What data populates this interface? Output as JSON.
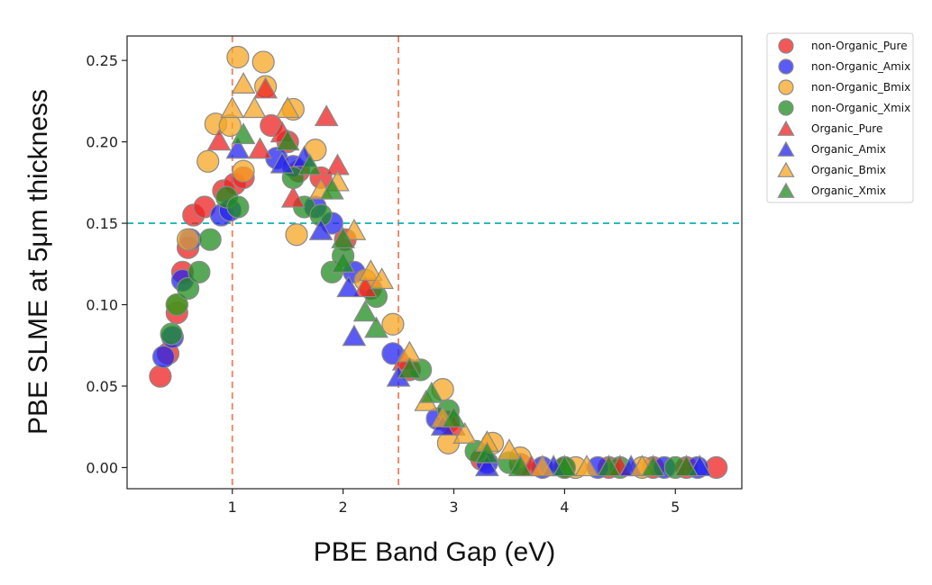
{
  "chart_data": {
    "type": "scatter",
    "title": "",
    "xlabel": "PBE Band Gap (eV)",
    "ylabel": "PBE SLME at 5μm thickness",
    "xlim": [
      0.05,
      5.6
    ],
    "ylim": [
      -0.013,
      0.265
    ],
    "xticks": [
      1,
      2,
      3,
      4,
      5
    ],
    "yticks": [
      0.0,
      0.05,
      0.1,
      0.15,
      0.2,
      0.25
    ],
    "ytick_labels": [
      "0.00",
      "0.05",
      "0.10",
      "0.15",
      "0.20",
      "0.25"
    ],
    "grid": false,
    "legend_position": "outside-top-right",
    "reference_lines": [
      {
        "orientation": "vertical",
        "value": 1.0,
        "color": "#f07f5a",
        "style": "dashed"
      },
      {
        "orientation": "vertical",
        "value": 2.5,
        "color": "#f07f5a",
        "style": "dashed"
      },
      {
        "orientation": "horizontal",
        "value": 0.15,
        "color": "#22b5b5",
        "style": "dashed"
      }
    ],
    "series": [
      {
        "name": "non-Organic_Pure",
        "marker": "circle",
        "color": "#ef2020",
        "points": [
          [
            0.35,
            0.056
          ],
          [
            0.42,
            0.07
          ],
          [
            0.5,
            0.095
          ],
          [
            0.55,
            0.12
          ],
          [
            0.6,
            0.135
          ],
          [
            0.65,
            0.155
          ],
          [
            0.75,
            0.16
          ],
          [
            0.92,
            0.17
          ],
          [
            1.02,
            0.174
          ],
          [
            1.1,
            0.178
          ],
          [
            1.35,
            0.21
          ],
          [
            1.5,
            0.2
          ],
          [
            1.6,
            0.182
          ],
          [
            1.8,
            0.178
          ],
          [
            2.02,
            0.14
          ],
          [
            2.25,
            0.11
          ],
          [
            2.6,
            0.06
          ],
          [
            2.95,
            0.028
          ],
          [
            3.25,
            0.005
          ],
          [
            3.6,
            0.002
          ],
          [
            4.0,
            0.0
          ],
          [
            4.4,
            0.0
          ],
          [
            4.8,
            0.0
          ],
          [
            5.1,
            0.0
          ],
          [
            5.37,
            0.0
          ]
        ]
      },
      {
        "name": "non-Organic_Amix",
        "marker": "circle",
        "color": "#2323f0",
        "points": [
          [
            0.38,
            0.068
          ],
          [
            0.46,
            0.08
          ],
          [
            0.55,
            0.115
          ],
          [
            0.62,
            0.14
          ],
          [
            0.9,
            0.155
          ],
          [
            0.98,
            0.158
          ],
          [
            1.4,
            0.19
          ],
          [
            1.55,
            0.185
          ],
          [
            1.75,
            0.16
          ],
          [
            1.9,
            0.15
          ],
          [
            2.1,
            0.12
          ],
          [
            2.45,
            0.07
          ],
          [
            2.85,
            0.03
          ],
          [
            3.3,
            0.003
          ],
          [
            3.8,
            0.0
          ],
          [
            4.3,
            0.0
          ],
          [
            4.9,
            0.0
          ],
          [
            5.2,
            0.0
          ]
        ]
      },
      {
        "name": "non-Organic_Bmix",
        "marker": "circle",
        "color": "#f5a623",
        "points": [
          [
            0.5,
            0.1
          ],
          [
            0.6,
            0.14
          ],
          [
            0.78,
            0.188
          ],
          [
            0.85,
            0.211
          ],
          [
            0.98,
            0.21
          ],
          [
            1.05,
            0.252
          ],
          [
            1.1,
            0.182
          ],
          [
            1.28,
            0.249
          ],
          [
            1.3,
            0.234
          ],
          [
            1.55,
            0.22
          ],
          [
            1.58,
            0.143
          ],
          [
            1.75,
            0.195
          ],
          [
            2.2,
            0.115
          ],
          [
            2.45,
            0.088
          ],
          [
            2.9,
            0.048
          ],
          [
            2.95,
            0.015
          ],
          [
            3.35,
            0.015
          ],
          [
            3.6,
            0.006
          ],
          [
            4.1,
            0.0
          ],
          [
            4.7,
            0.0
          ]
        ]
      },
      {
        "name": "non-Organic_Xmix",
        "marker": "circle",
        "color": "#1f8c1f",
        "points": [
          [
            0.45,
            0.082
          ],
          [
            0.5,
            0.1
          ],
          [
            0.6,
            0.11
          ],
          [
            0.7,
            0.12
          ],
          [
            0.8,
            0.14
          ],
          [
            0.95,
            0.166
          ],
          [
            1.05,
            0.16
          ],
          [
            1.55,
            0.178
          ],
          [
            1.65,
            0.16
          ],
          [
            1.8,
            0.155
          ],
          [
            1.9,
            0.12
          ],
          [
            2.0,
            0.13
          ],
          [
            2.3,
            0.105
          ],
          [
            2.7,
            0.06
          ],
          [
            2.95,
            0.035
          ],
          [
            3.2,
            0.01
          ],
          [
            3.5,
            0.003
          ],
          [
            4.0,
            0.0
          ],
          [
            4.5,
            0.0
          ],
          [
            5.0,
            0.0
          ]
        ]
      },
      {
        "name": "Organic_Pure",
        "marker": "triangle",
        "color": "#ef2020",
        "points": [
          [
            0.88,
            0.2
          ],
          [
            1.25,
            0.195
          ],
          [
            1.3,
            0.232
          ],
          [
            1.45,
            0.205
          ],
          [
            1.55,
            0.165
          ],
          [
            1.85,
            0.215
          ],
          [
            1.95,
            0.185
          ],
          [
            2.2,
            0.11
          ],
          [
            2.55,
            0.065
          ],
          [
            3.0,
            0.025
          ],
          [
            3.7,
            0.0
          ],
          [
            4.5,
            0.0
          ],
          [
            5.1,
            0.0
          ]
        ]
      },
      {
        "name": "Organic_Amix",
        "marker": "triangle",
        "color": "#2323f0",
        "points": [
          [
            1.05,
            0.195
          ],
          [
            1.45,
            0.186
          ],
          [
            1.65,
            0.19
          ],
          [
            1.8,
            0.145
          ],
          [
            2.05,
            0.11
          ],
          [
            2.1,
            0.08
          ],
          [
            2.5,
            0.055
          ],
          [
            2.9,
            0.025
          ],
          [
            3.3,
            0.0
          ],
          [
            3.9,
            0.0
          ],
          [
            4.6,
            0.0
          ],
          [
            5.22,
            0.0
          ]
        ]
      },
      {
        "name": "Organic_Bmix",
        "marker": "triangle",
        "color": "#f5a623",
        "points": [
          [
            1.0,
            0.22
          ],
          [
            1.1,
            0.235
          ],
          [
            1.2,
            0.22
          ],
          [
            1.5,
            0.22
          ],
          [
            1.8,
            0.17
          ],
          [
            1.95,
            0.175
          ],
          [
            2.1,
            0.145
          ],
          [
            2.25,
            0.12
          ],
          [
            2.35,
            0.115
          ],
          [
            2.6,
            0.07
          ],
          [
            2.75,
            0.04
          ],
          [
            2.9,
            0.03
          ],
          [
            3.1,
            0.02
          ],
          [
            3.3,
            0.015
          ],
          [
            3.5,
            0.01
          ],
          [
            3.8,
            0.0
          ],
          [
            4.2,
            0.0
          ],
          [
            4.7,
            0.0
          ]
        ]
      },
      {
        "name": "Organic_Xmix",
        "marker": "triangle",
        "color": "#1f8c1f",
        "points": [
          [
            1.1,
            0.204
          ],
          [
            1.5,
            0.2
          ],
          [
            1.7,
            0.185
          ],
          [
            1.9,
            0.17
          ],
          [
            2.0,
            0.14
          ],
          [
            2.0,
            0.125
          ],
          [
            2.2,
            0.095
          ],
          [
            2.3,
            0.085
          ],
          [
            2.6,
            0.06
          ],
          [
            2.8,
            0.045
          ],
          [
            3.0,
            0.03
          ],
          [
            3.3,
            0.008
          ],
          [
            3.6,
            0.0
          ],
          [
            4.0,
            0.0
          ],
          [
            4.4,
            0.0
          ],
          [
            4.8,
            0.0
          ],
          [
            5.1,
            0.0
          ]
        ]
      }
    ]
  }
}
